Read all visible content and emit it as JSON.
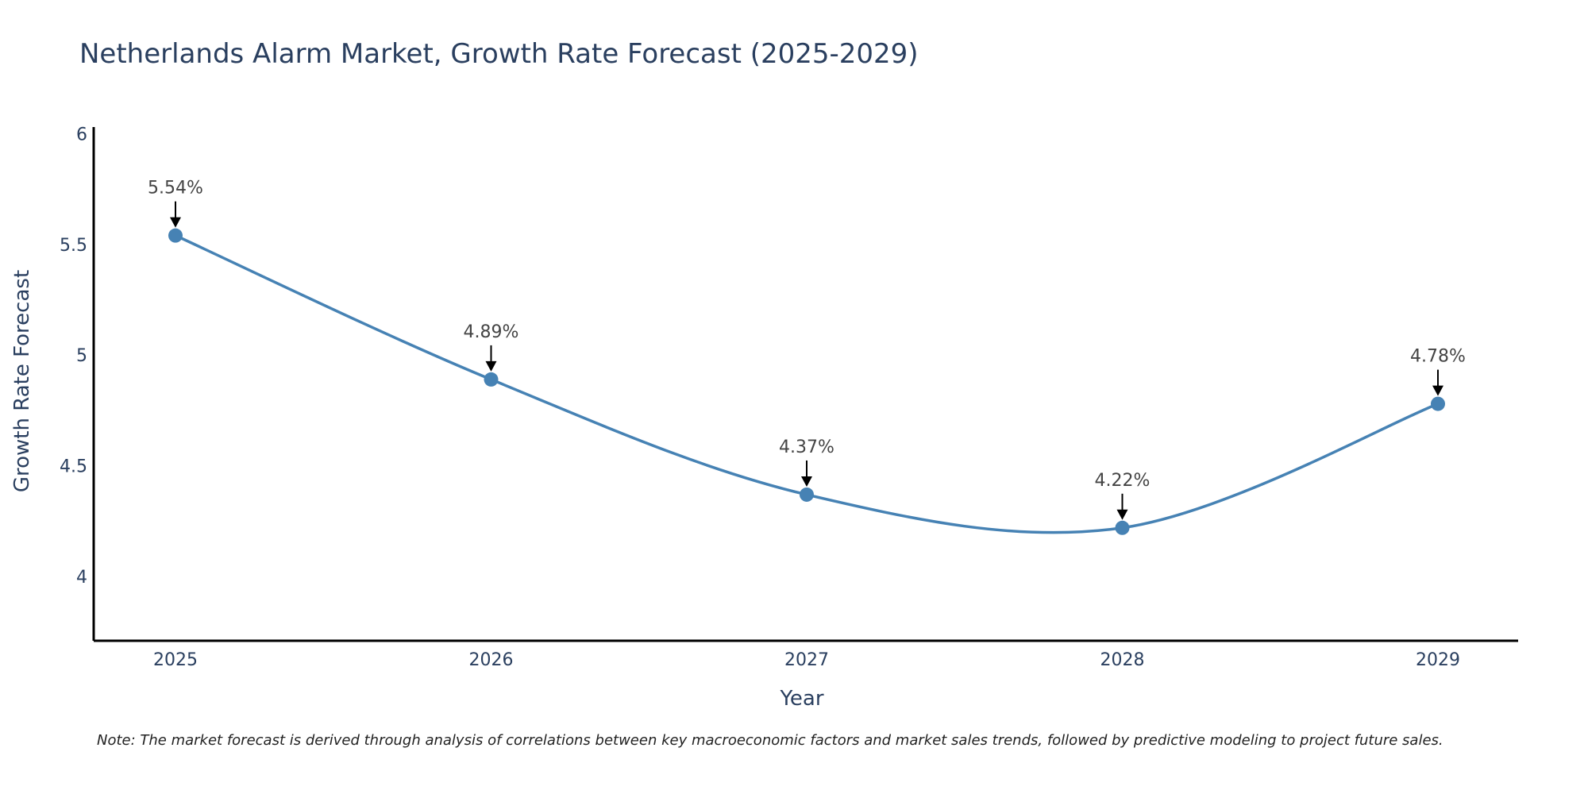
{
  "chart_data": {
    "type": "line",
    "title": "Netherlands Alarm Market, Growth Rate Forecast (2025-2029)",
    "xlabel": "Year",
    "ylabel": "Growth Rate Forecast",
    "categories": [
      "2025",
      "2026",
      "2027",
      "2028",
      "2029"
    ],
    "series": [
      {
        "name": "Growth Rate Forecast",
        "values": [
          5.54,
          4.89,
          4.37,
          4.22,
          4.78
        ],
        "labels": [
          "5.54%",
          "4.89%",
          "4.37%",
          "4.22%",
          "4.78%"
        ]
      }
    ],
    "ylim": [
      3.71,
      6.03
    ],
    "yticks": [
      4,
      4.5,
      5,
      5.5,
      6
    ],
    "ytick_labels": [
      "4",
      "4.5",
      "5",
      "5.5",
      "6"
    ],
    "grid": false,
    "line_shape": "spline",
    "colors": {
      "line": "#4682b4",
      "marker": "#4682b4",
      "arrow": "#000000",
      "axis": "#000000"
    },
    "note": "Note: The market forecast is derived through analysis of correlations between key macroeconomic factors and market sales trends, followed by predictive modeling to project future sales."
  }
}
